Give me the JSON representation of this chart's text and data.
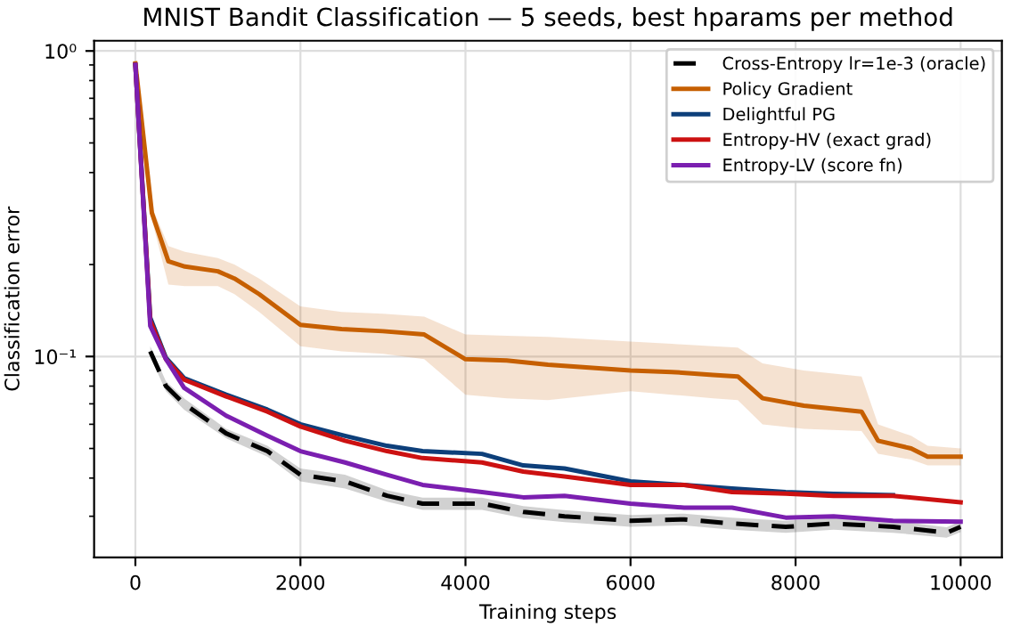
{
  "chart_data": {
    "type": "line",
    "title": "MNIST Bandit Classification — 5 seeds, best hparams per method",
    "xlabel": "Training steps",
    "ylabel": "Classification error",
    "xlim": [
      -500,
      10500
    ],
    "xticks": [
      0,
      2000,
      4000,
      6000,
      8000,
      10000
    ],
    "ylim": [
      0.022,
      1.08
    ],
    "yticks": [
      {
        "value": 0.1,
        "label": "10⁻¹"
      },
      {
        "value": 1,
        "label": "10⁰"
      }
    ],
    "log": "y",
    "grid": true,
    "legend": "top right",
    "marker": "none",
    "series": [
      {
        "name": "Cross-Entropy lr=1e-3 (oracle)",
        "color": "#000000",
        "line_style": "dashed",
        "x": [
          180,
          370,
          590,
          1100,
          1600,
          2000,
          2540,
          3050,
          3480,
          4200,
          4700,
          5200,
          6000,
          6650,
          7230,
          7880,
          8460,
          9180,
          9830,
          10000
        ],
        "values": [
          0.104,
          0.08,
          0.07,
          0.056,
          0.049,
          0.041,
          0.039,
          0.035,
          0.033,
          0.033,
          0.031,
          0.03,
          0.029,
          0.0293,
          0.0284,
          0.0277,
          0.0284,
          0.0277,
          0.0265,
          0.0277
        ],
        "lower": [
          0.1,
          0.077,
          0.067,
          0.054,
          0.047,
          0.039,
          0.037,
          0.0335,
          0.0315,
          0.0315,
          0.0296,
          0.0287,
          0.0277,
          0.028,
          0.0271,
          0.0265,
          0.0271,
          0.0265,
          0.0255,
          0.0266
        ],
        "upper": [
          0.108,
          0.083,
          0.073,
          0.058,
          0.051,
          0.043,
          0.041,
          0.0365,
          0.0345,
          0.0345,
          0.0324,
          0.0314,
          0.0303,
          0.0306,
          0.0297,
          0.029,
          0.0297,
          0.029,
          0.0276,
          0.0289
        ]
      },
      {
        "name": "Policy Gradient",
        "color": "#c65f00",
        "x": [
          0,
          200,
          400,
          600,
          1000,
          1200,
          1500,
          2000,
          2500,
          3000,
          3500,
          4000,
          4500,
          5000,
          6000,
          6500,
          7000,
          7300,
          7600,
          8100,
          8800,
          9000,
          9400,
          9600,
          10000
        ],
        "values": [
          0.91,
          0.295,
          0.205,
          0.197,
          0.19,
          0.18,
          0.16,
          0.127,
          0.123,
          0.121,
          0.118,
          0.098,
          0.097,
          0.094,
          0.09,
          0.089,
          0.087,
          0.086,
          0.073,
          0.069,
          0.066,
          0.053,
          0.05,
          0.047,
          0.047
        ],
        "upper": [
          0.93,
          0.31,
          0.23,
          0.22,
          0.21,
          0.2,
          0.18,
          0.146,
          0.14,
          0.138,
          0.135,
          0.118,
          0.117,
          0.116,
          0.112,
          0.11,
          0.108,
          0.107,
          0.095,
          0.09,
          0.086,
          0.06,
          0.055,
          0.051,
          0.05
        ],
        "lower": [
          0.89,
          0.28,
          0.172,
          0.17,
          0.17,
          0.16,
          0.14,
          0.108,
          0.104,
          0.102,
          0.098,
          0.075,
          0.073,
          0.072,
          0.077,
          0.075,
          0.073,
          0.072,
          0.06,
          0.058,
          0.057,
          0.048,
          0.046,
          0.044,
          0.044
        ]
      },
      {
        "name": "Delightful PG",
        "color": "#0d3f7a",
        "x": [
          0,
          180,
          370,
          590,
          1100,
          1600,
          2000,
          2540,
          3050,
          3480,
          4200,
          4700,
          5200,
          6000,
          6650,
          7230,
          7880,
          8460,
          9180
        ],
        "values": [
          0.9,
          0.134,
          0.099,
          0.085,
          0.075,
          0.067,
          0.06,
          0.055,
          0.051,
          0.049,
          0.048,
          0.044,
          0.043,
          0.039,
          0.038,
          0.037,
          0.036,
          0.0355,
          0.0352
        ]
      },
      {
        "name": "Entropy-HV (exact grad)",
        "color": "#cc1111",
        "x": [
          0,
          180,
          370,
          590,
          1100,
          1600,
          2000,
          2540,
          3050,
          3480,
          4200,
          4700,
          5200,
          6000,
          6650,
          7230,
          7880,
          8460,
          9180,
          10000
        ],
        "values": [
          0.9,
          0.131,
          0.098,
          0.084,
          0.074,
          0.066,
          0.059,
          0.053,
          0.049,
          0.0465,
          0.045,
          0.042,
          0.0405,
          0.038,
          0.038,
          0.036,
          0.0356,
          0.035,
          0.035,
          0.0333
        ]
      },
      {
        "name": "Entropy-LV (score fn)",
        "color": "#7b1fb0",
        "x": [
          0,
          180,
          370,
          590,
          1100,
          1600,
          2000,
          2540,
          3050,
          3480,
          4200,
          4700,
          5200,
          6000,
          6650,
          7230,
          7880,
          8460,
          9180,
          10000
        ],
        "values": [
          0.9,
          0.126,
          0.098,
          0.079,
          0.064,
          0.055,
          0.049,
          0.045,
          0.041,
          0.038,
          0.036,
          0.0346,
          0.035,
          0.033,
          0.032,
          0.032,
          0.0297,
          0.03,
          0.029,
          0.0288
        ]
      }
    ]
  }
}
